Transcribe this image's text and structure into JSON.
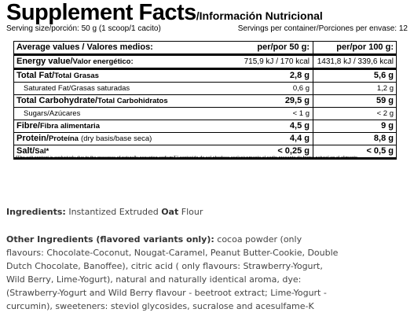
{
  "header": {
    "title": "Supplement Facts",
    "subtitle": "/Información Nutricional",
    "serving_size": "Serving size/porción: 50 g (1 scoop/1 cacito)",
    "servings_per_container": "Servings per container/Porciones per envase: 12"
  },
  "table": {
    "columns": [
      "Average values / Valores medios:",
      "per/por 50 g:",
      "per/por 100 g:"
    ],
    "rows": [
      {
        "label": "Energy value/",
        "label_es": "Valor energético:",
        "per_50g": "715,9 kJ / 170 kcal",
        "per_100g": "1431,8 kJ / 339,6 kcal"
      },
      {
        "label": "Total Fat/",
        "label_es": "Total Grasas",
        "per_50g": "2,8 g",
        "per_100g": "5,6 g"
      },
      {
        "label": "Saturated Fat/Grasas saturadas",
        "per_50g": "0,6 g",
        "per_100g": "1,2 g",
        "indent": true
      },
      {
        "label": "Total Carbohydrate/",
        "label_es": "Total Carbohidratos",
        "per_50g": "29,5 g",
        "per_100g": "59 g"
      },
      {
        "label": "Sugars/Azúcares",
        "per_50g": "< 1 g",
        "per_100g": "< 2 g",
        "indent": true
      },
      {
        "label": "Fibre/",
        "label_es": "Fibra alimentaria",
        "per_50g": "4,5 g",
        "per_100g": "9 g"
      },
      {
        "label": "Protein/",
        "label_es": "Proteína",
        "note": "(dry basis/base seca)",
        "per_50g": "4,4 g",
        "per_100g": "8,8 g"
      },
      {
        "label": "Salt/",
        "label_es": "Sal*",
        "per_50g": "< 0,25 g",
        "per_100g": "< 0,5 g"
      }
    ],
    "footnote": "*The salt content is exclusively due to the presence of naturally occurring sodium/El contenido de sal obedece exclusivamente al sodio presente de forma natural en el alimento"
  },
  "ingredients": {
    "label": "Ingredients:",
    "text_1": "Instantized Extruded",
    "highlight": "Oat",
    "text_2": "Flour"
  },
  "other_ingredients": {
    "label": "Other Ingredients (flavored variants only):",
    "lines": [
      "cocoa powder (only",
      "flavours: Chocolate-Coconut, Nougat-Caramel, Peanut Butter-Cookie, Double",
      "Dutch Chocolate, Banoffee), citric acid ( only flavours: Strawberry-Yogurt,",
      "Wild Berry, Lime-Yogurt), natural and naturally identical aroma, dye:",
      "(Strawberry-Yogurt and Wild Berry flavour - beetroot extract; Lime-Yogurt -",
      "curcumin), sweeteners: steviol glycosides, sucralose and acesulfame-K"
    ]
  }
}
